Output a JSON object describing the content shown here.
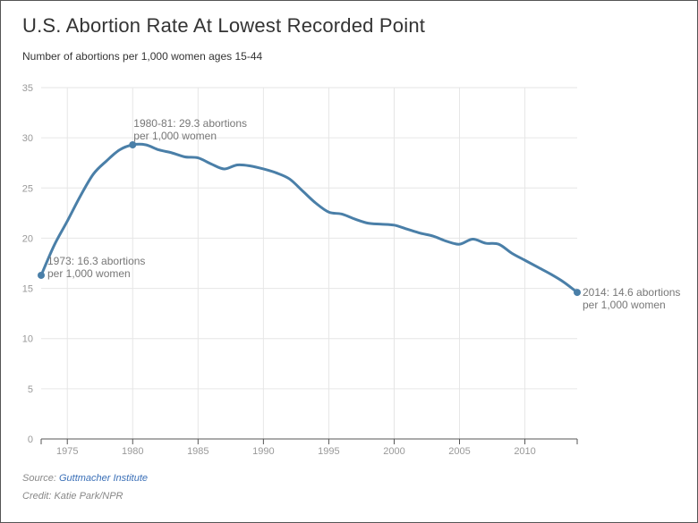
{
  "header": {
    "title": "U.S. Abortion Rate At Lowest Recorded Point",
    "subtitle": "Number of abortions per 1,000 women ages 15-44"
  },
  "footer": {
    "source_prefix": "Source: ",
    "source_link": "Guttmacher Institute",
    "credit": "Credit: Katie Park/NPR"
  },
  "colors": {
    "line": "#4a7fa8",
    "grid": "#e6e6e6",
    "axis": "#555555"
  },
  "chart_data": {
    "type": "line",
    "title": "U.S. Abortion Rate At Lowest Recorded Point",
    "subtitle": "Number of abortions per 1,000 women ages 15-44",
    "xlabel": "",
    "ylabel": "",
    "xlim": [
      1973,
      2014
    ],
    "ylim": [
      0,
      35
    ],
    "x_ticks": [
      1975,
      1980,
      1985,
      1990,
      1995,
      2000,
      2005,
      2010
    ],
    "y_ticks": [
      0,
      5,
      10,
      15,
      20,
      25,
      30,
      35
    ],
    "grid": true,
    "series": [
      {
        "name": "Abortion rate",
        "x": [
          1973,
          1974,
          1975,
          1976,
          1977,
          1978,
          1979,
          1980,
          1981,
          1982,
          1983,
          1984,
          1985,
          1986,
          1987,
          1988,
          1989,
          1990,
          1991,
          1992,
          1993,
          1994,
          1995,
          1996,
          1997,
          1998,
          1999,
          2000,
          2001,
          2002,
          2003,
          2004,
          2005,
          2006,
          2007,
          2008,
          2009,
          2010,
          2011,
          2012,
          2013,
          2014
        ],
        "values": [
          16.3,
          19.3,
          21.7,
          24.2,
          26.4,
          27.7,
          28.8,
          29.3,
          29.3,
          28.8,
          28.5,
          28.1,
          28.0,
          27.4,
          26.9,
          27.3,
          27.2,
          26.9,
          26.5,
          25.9,
          24.7,
          23.5,
          22.6,
          22.4,
          21.9,
          21.5,
          21.4,
          21.3,
          20.9,
          20.5,
          20.2,
          19.7,
          19.4,
          19.9,
          19.5,
          19.4,
          18.5,
          17.8,
          17.1,
          16.4,
          15.6,
          14.6
        ]
      }
    ],
    "annotations": [
      {
        "x": 1973,
        "y": 16.3,
        "line1": "1973: 16.3 abortions",
        "line2": "per 1,000 women"
      },
      {
        "x": 1980,
        "y": 29.3,
        "line1": "1980-81: 29.3 abortions",
        "line2": "per 1,000 women"
      },
      {
        "x": 2014,
        "y": 14.6,
        "line1": "2014: 14.6 abortions",
        "line2": "per 1,000 women"
      }
    ]
  }
}
